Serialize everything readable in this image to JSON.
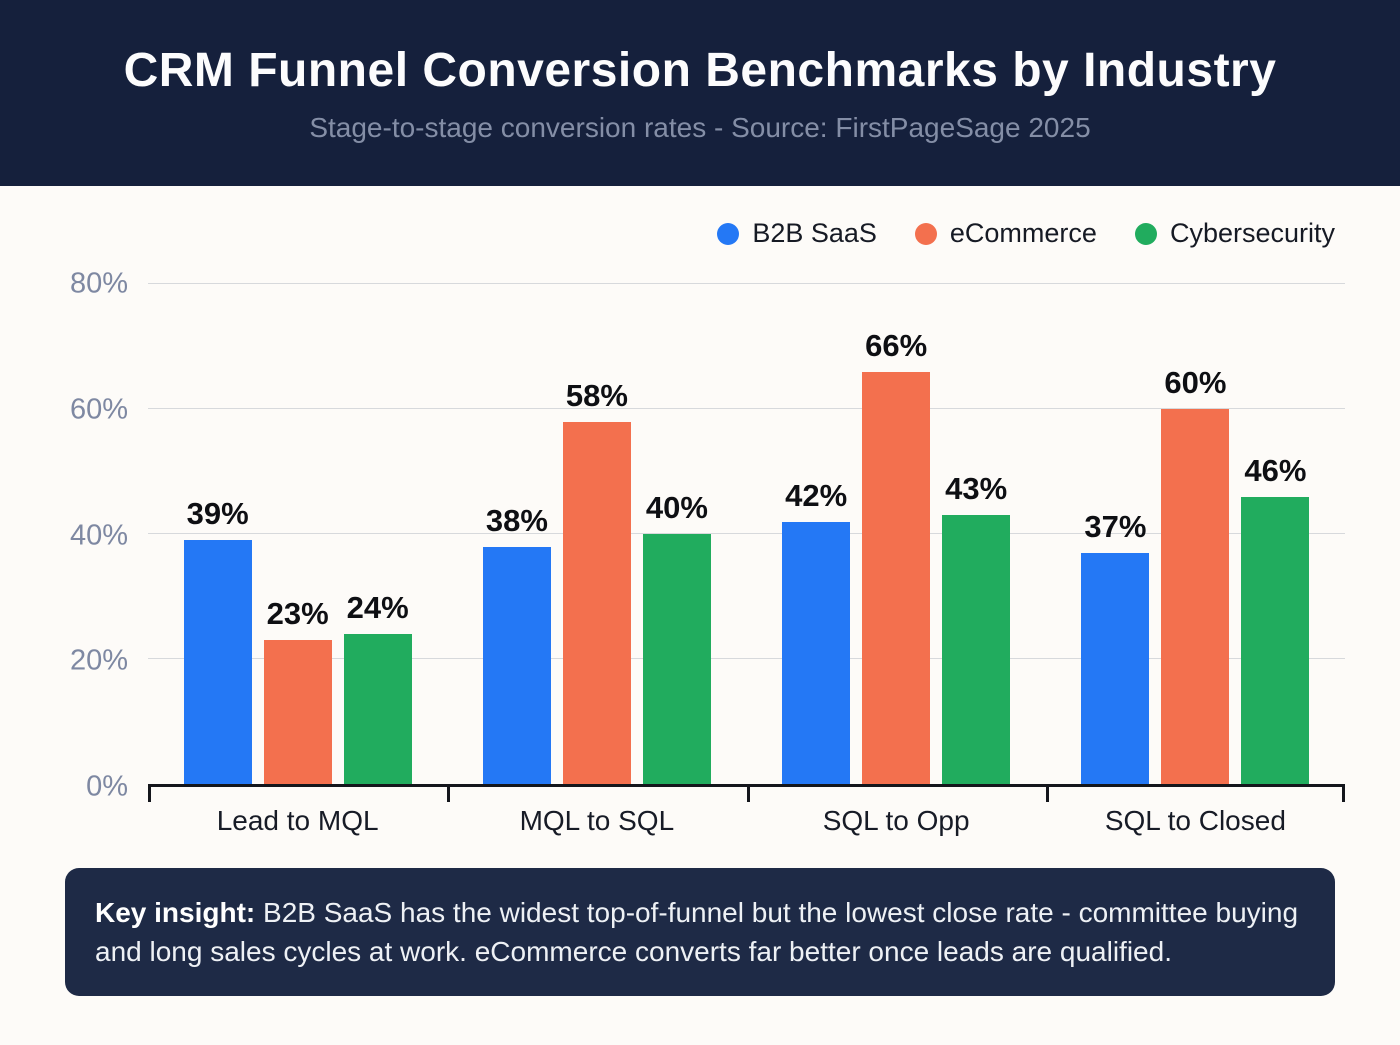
{
  "header": {
    "title": "CRM Funnel Conversion Benchmarks by Industry",
    "subtitle": "Stage-to-stage conversion rates - Source: FirstPageSage 2025"
  },
  "chart_data": {
    "type": "bar",
    "categories": [
      "Lead to MQL",
      "MQL to SQL",
      "SQL to Opp",
      "SQL to Closed"
    ],
    "series": [
      {
        "name": "B2B SaaS",
        "color": "#2478f5",
        "values": [
          39,
          38,
          42,
          37
        ]
      },
      {
        "name": "eCommerce",
        "color": "#f3704e",
        "values": [
          23,
          58,
          66,
          60
        ]
      },
      {
        "name": "Cybersecurity",
        "color": "#21ac5e",
        "values": [
          24,
          40,
          43,
          46
        ]
      }
    ],
    "value_suffix": "%",
    "title": "CRM Funnel Conversion Benchmarks by Industry",
    "xlabel": "",
    "ylabel": "",
    "ylim": [
      0,
      80
    ],
    "yticks": [
      0,
      20,
      40,
      60,
      80
    ],
    "ytick_suffix": "%",
    "grid": true,
    "legend_position": "top-right"
  },
  "insight": {
    "label": "Key insight:",
    "text": " B2B SaaS has the widest top-of-funnel but the lowest close rate - committee buying and long sales cycles at work. eCommerce converts far better once leads are qualified."
  }
}
